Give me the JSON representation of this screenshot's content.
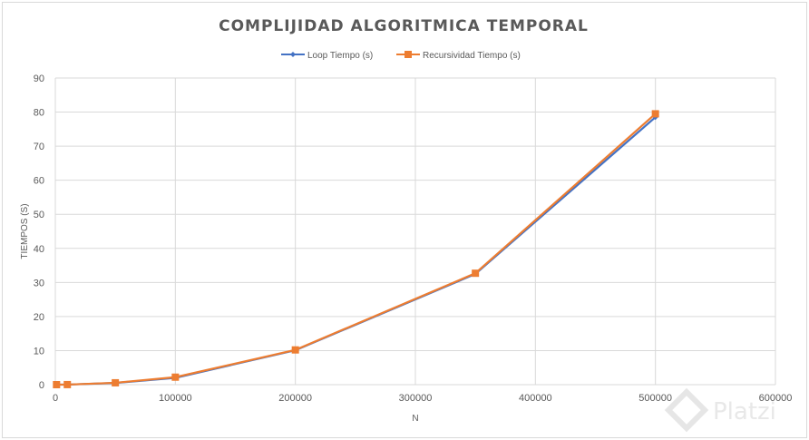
{
  "chart_data": {
    "type": "line",
    "title": "COMPLIJIDAD ALGORITMICA TEMPORAL",
    "xlabel": "N",
    "ylabel": "TIEMPOS (S)",
    "xlim": [
      0,
      600000
    ],
    "ylim": [
      0,
      90
    ],
    "xticks": [
      0,
      100000,
      200000,
      300000,
      400000,
      500000,
      600000
    ],
    "yticks": [
      0,
      10,
      20,
      30,
      40,
      50,
      60,
      70,
      80,
      90
    ],
    "grid": true,
    "legend_position": "top",
    "x": [
      1000,
      10000,
      50000,
      100000,
      200000,
      350000,
      500000
    ],
    "series": [
      {
        "name": "Loop Tiempo (s)",
        "color": "#4472c4",
        "marker": "diamond",
        "values": [
          0,
          0.02,
          0.5,
          2.0,
          10.1,
          32.5,
          78.5
        ]
      },
      {
        "name": "Recursividad Tiempo (s)",
        "color": "#ed7d31",
        "marker": "square",
        "values": [
          0,
          0.02,
          0.55,
          2.2,
          10.2,
          32.7,
          79.5
        ]
      }
    ]
  },
  "watermark": "Platzi"
}
